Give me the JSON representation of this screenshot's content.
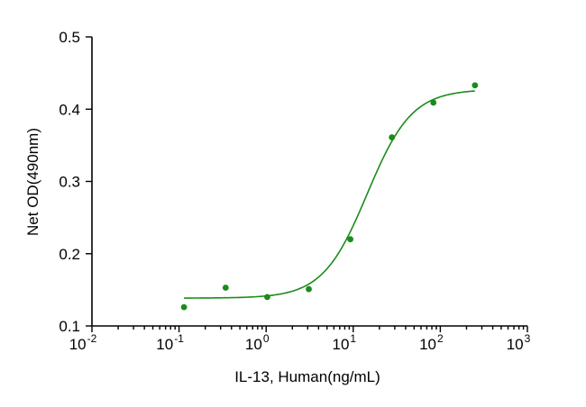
{
  "chart_data": {
    "type": "scatter",
    "title": "",
    "xlabel": "IL-13, Human(ng/mL)",
    "ylabel": "Net OD(490nm)",
    "x_scale": "log10",
    "xlim": [
      0.01,
      1000
    ],
    "ylim": [
      0.1,
      0.5
    ],
    "x_ticks": [
      {
        "base": "10",
        "exp": "-2",
        "value": 0.01
      },
      {
        "base": "10",
        "exp": "-1",
        "value": 0.1
      },
      {
        "base": "10",
        "exp": "0",
        "value": 1
      },
      {
        "base": "10",
        "exp": "1",
        "value": 10
      },
      {
        "base": "10",
        "exp": "2",
        "value": 100
      },
      {
        "base": "10",
        "exp": "3",
        "value": 1000
      }
    ],
    "y_ticks": [
      "0.1",
      "0.2",
      "0.3",
      "0.4",
      "0.5"
    ],
    "grid": false,
    "legend": "none",
    "color": "#1a8c1a",
    "series": [
      {
        "points": [
          {
            "x": 0.114,
            "y": 0.126
          },
          {
            "x": 0.343,
            "y": 0.153
          },
          {
            "x": 1.03,
            "y": 0.14
          },
          {
            "x": 3.09,
            "y": 0.151
          },
          {
            "x": 9.26,
            "y": 0.22
          },
          {
            "x": 27.8,
            "y": 0.361
          },
          {
            "x": 83.3,
            "y": 0.409
          },
          {
            "x": 250,
            "y": 0.433
          }
        ],
        "fit": {
          "model": "4PL",
          "bottom": 0.1385,
          "top": 0.4275,
          "ec50": 14.5,
          "hill": 1.7,
          "x_range": [
            0.114,
            250
          ]
        }
      }
    ]
  }
}
